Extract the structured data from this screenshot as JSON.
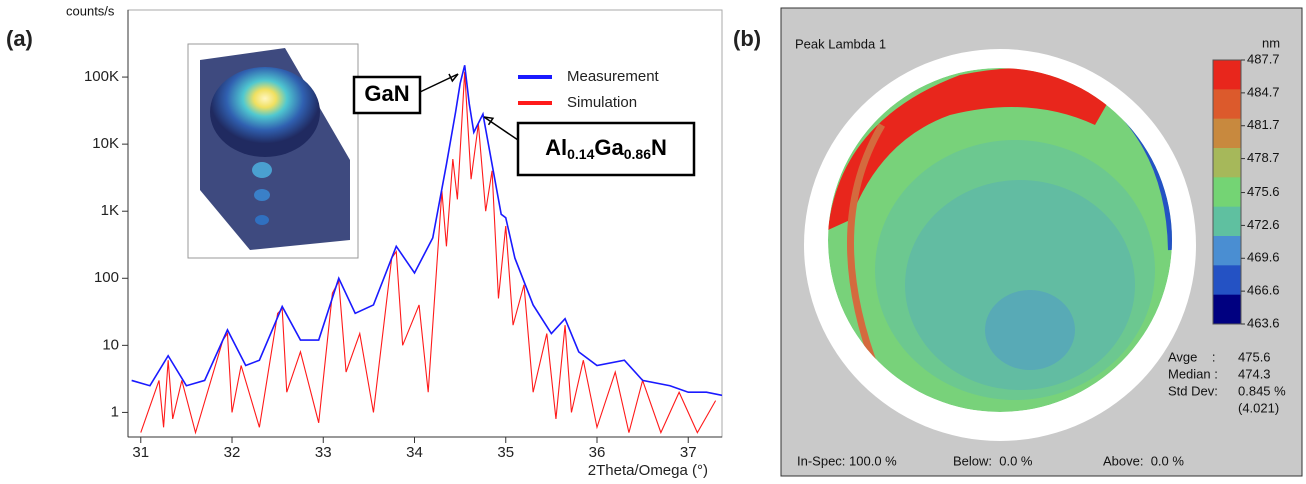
{
  "chart_data": {
    "type": "line",
    "panel_label": "(a)",
    "ylabel": "counts/s",
    "xlabel": "2Theta/Omega (°)",
    "yscale": "log",
    "xlim": [
      30.86,
      37.37
    ],
    "ylim": [
      0.43,
      1000000
    ],
    "xticks": [
      31,
      32,
      33,
      34,
      35,
      36,
      37
    ],
    "yticks": [
      1,
      10,
      100,
      {
        "value": 1000,
        "label": "1K"
      },
      {
        "value": 10000,
        "label": "10K"
      },
      {
        "value": 100000,
        "label": "100K"
      }
    ],
    "legend": "upper right",
    "series": [
      {
        "name": "Measurement",
        "color": "#1a1aff",
        "x": [
          30.9,
          31.1,
          31.3,
          31.5,
          31.7,
          31.95,
          32.15,
          32.3,
          32.55,
          32.75,
          32.95,
          33.17,
          33.35,
          33.55,
          33.8,
          34.0,
          34.2,
          34.35,
          34.45,
          34.5,
          34.55,
          34.6,
          34.65,
          34.75,
          34.85,
          34.95,
          35.0,
          35.1,
          35.3,
          35.5,
          35.65,
          35.8,
          36.0,
          36.3,
          36.5,
          36.8,
          37.0,
          37.2,
          37.37
        ],
        "values": [
          3,
          2.5,
          7,
          2.5,
          3,
          17,
          5,
          6,
          38,
          12,
          12,
          100,
          30,
          40,
          300,
          120,
          400,
          5000,
          30000,
          80000,
          150000,
          40000,
          15000,
          28000,
          5000,
          900,
          800,
          200,
          40,
          15,
          25,
          8,
          5,
          6,
          3,
          2.5,
          2,
          2,
          1.8
        ]
      },
      {
        "name": "Simulation",
        "color": "#ff1a1a",
        "x": [
          31.0,
          31.2,
          31.25,
          31.3,
          31.35,
          31.45,
          31.6,
          31.9,
          31.95,
          32.0,
          32.1,
          32.3,
          32.5,
          32.55,
          32.6,
          32.75,
          32.95,
          33.1,
          33.17,
          33.25,
          33.4,
          33.55,
          33.75,
          33.8,
          33.87,
          34.05,
          34.15,
          34.3,
          34.35,
          34.42,
          34.47,
          34.55,
          34.62,
          34.7,
          34.78,
          34.85,
          34.92,
          35.0,
          35.08,
          35.2,
          35.3,
          35.45,
          35.55,
          35.65,
          35.72,
          35.85,
          36.0,
          36.2,
          36.35,
          36.5,
          36.7,
          36.9,
          37.1,
          37.3
        ],
        "values": [
          0.5,
          3,
          0.6,
          6,
          0.8,
          3,
          0.5,
          12,
          15,
          1,
          5,
          0.6,
          30,
          35,
          2,
          8,
          0.7,
          60,
          90,
          4,
          15,
          1,
          200,
          250,
          10,
          40,
          2,
          2000,
          300,
          6000,
          1500,
          120000,
          3000,
          20000,
          1000,
          4000,
          50,
          600,
          20,
          80,
          2,
          15,
          0.8,
          20,
          1,
          6,
          0.6,
          4,
          0.5,
          3,
          0.5,
          2,
          0.5,
          1.5
        ]
      }
    ],
    "annotations": [
      {
        "parts": [
          {
            "text": "GaN"
          }
        ]
      },
      {
        "parts": [
          {
            "text": "Al"
          },
          {
            "text": "0.14",
            "sub": true
          },
          {
            "text": "Ga"
          },
          {
            "text": "0.86",
            "sub": true
          },
          {
            "text": "N"
          }
        ]
      }
    ]
  },
  "wafer_map": {
    "panel_label": "(b)",
    "title": "Peak Lambda 1",
    "unit": "nm",
    "colorbar": {
      "ticks": [
        487.7,
        484.7,
        481.7,
        478.7,
        475.6,
        472.6,
        469.6,
        466.6,
        463.6
      ],
      "colors": [
        "#e8261c",
        "#dc5a2c",
        "#c8893e",
        "#a6b85a",
        "#74d474",
        "#5fc0a0",
        "#4a8ed2",
        "#2452c4",
        "#000080"
      ]
    },
    "stats": [
      {
        "label": "Avge    :",
        "value": "475.6"
      },
      {
        "label": "Median :",
        "value": "474.3"
      },
      {
        "label": "Std Dev:",
        "value": "0.845 %"
      }
    ],
    "stats_note": "(4.021)",
    "footer": [
      "In-Spec: 100.0 %",
      "Below:  0.0 %",
      "Above:  0.0 %"
    ]
  }
}
